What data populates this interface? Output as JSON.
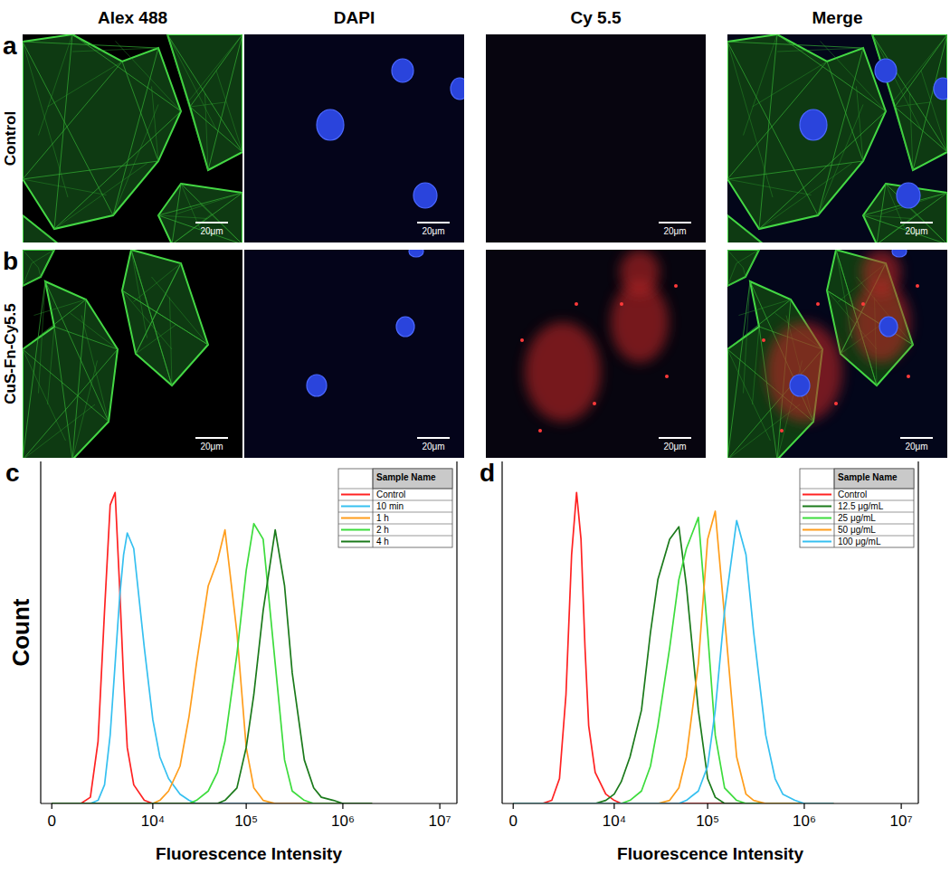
{
  "microscopy": {
    "columns": [
      "Alex 488",
      "DAPI",
      "Cy 5.5",
      "Merge"
    ],
    "rows": [
      {
        "panel": "a",
        "label": "Control"
      },
      {
        "panel": "b",
        "label": "CuS-Fn-Cy5.5"
      }
    ],
    "scale_bar": "20μm"
  },
  "chart_data": [
    {
      "type": "line",
      "title": "c",
      "x_label": "Fluorescence Intensity",
      "y_label": "Count",
      "legend_title": "Sample Name",
      "x": [
        0,
        250,
        500,
        1000,
        1500,
        2000,
        2500,
        3000,
        3500,
        4000,
        4500,
        5000,
        6000,
        8000,
        10000,
        12000,
        15000,
        20000,
        25000,
        30000,
        40000,
        50000,
        60000,
        80000,
        100000,
        120000,
        150000,
        200000,
        250000,
        300000,
        400000,
        500000,
        600000,
        800000,
        1000000,
        1500000,
        2000000
      ],
      "series": [
        {
          "name": "Control",
          "color": "#ff2222",
          "values": [
            0,
            0,
            0,
            0,
            2,
            20,
            62,
            96,
            100,
            70,
            40,
            18,
            6,
            1,
            0,
            0,
            0,
            0,
            0,
            0,
            0,
            0,
            0,
            0,
            0,
            0,
            0,
            0,
            0,
            0,
            0,
            0,
            0,
            0,
            0,
            0,
            0
          ]
        },
        {
          "name": "10 min",
          "color": "#36c0f0",
          "values": [
            0,
            0,
            0,
            0,
            0,
            1,
            6,
            22,
            45,
            66,
            80,
            87,
            82,
            50,
            27,
            15,
            8,
            3,
            1,
            0,
            0,
            0,
            0,
            0,
            0,
            0,
            0,
            0,
            0,
            0,
            0,
            0,
            0,
            0,
            0,
            0,
            0
          ]
        },
        {
          "name": "1 h",
          "color": "#ff9d1c",
          "values": [
            0,
            0,
            0,
            0,
            0,
            0,
            0,
            0,
            0,
            0,
            0,
            0,
            0,
            0,
            0,
            1,
            4,
            12,
            28,
            45,
            70,
            78,
            88,
            55,
            18,
            5,
            1,
            0,
            0,
            0,
            0,
            0,
            0,
            0,
            0,
            0,
            0
          ]
        },
        {
          "name": "2 h",
          "color": "#3ddc3d",
          "values": [
            0,
            0,
            0,
            0,
            0,
            0,
            0,
            0,
            0,
            0,
            0,
            0,
            0,
            0,
            0,
            0,
            0,
            0,
            0,
            1,
            4,
            10,
            20,
            48,
            75,
            90,
            85,
            45,
            14,
            4,
            1,
            0,
            0,
            0,
            0,
            0,
            0
          ]
        },
        {
          "name": "4 h",
          "color": "#1b7a1b",
          "values": [
            0,
            0,
            0,
            0,
            0,
            0,
            0,
            0,
            0,
            0,
            0,
            0,
            0,
            0,
            0,
            0,
            0,
            0,
            0,
            0,
            0,
            0,
            1,
            5,
            18,
            35,
            62,
            88,
            70,
            42,
            14,
            5,
            2,
            1,
            0,
            0,
            0
          ]
        }
      ],
      "xlim": [
        -300,
        15000000
      ],
      "ylim": [
        0,
        110
      ],
      "xticks": [
        {
          "value": 0,
          "label": "0"
        },
        {
          "value": 10000,
          "label": "10⁴"
        },
        {
          "value": 100000,
          "label": "10⁵"
        },
        {
          "value": 1000000,
          "label": "10⁶"
        },
        {
          "value": 10000000,
          "label": "10⁷"
        }
      ],
      "log": "x",
      "tick_labels": "x",
      "legend": "upper right"
    },
    {
      "type": "line",
      "title": "d",
      "x_label": "Fluorescence Intensity",
      "legend_title": "Sample Name",
      "x": [
        0,
        250,
        500,
        1000,
        1500,
        2000,
        2500,
        3000,
        3500,
        4000,
        4500,
        5000,
        6000,
        8000,
        10000,
        12000,
        15000,
        20000,
        25000,
        30000,
        40000,
        50000,
        60000,
        80000,
        100000,
        120000,
        150000,
        200000,
        250000,
        300000,
        400000,
        500000,
        600000,
        800000,
        1000000,
        1500000,
        2000000
      ],
      "series": [
        {
          "name": "Control",
          "color": "#ff2222",
          "values": [
            0,
            0,
            0,
            0,
            1,
            8,
            35,
            80,
            100,
            85,
            50,
            25,
            10,
            3,
            1,
            0,
            0,
            0,
            0,
            0,
            0,
            0,
            0,
            0,
            0,
            0,
            0,
            0,
            0,
            0,
            0,
            0,
            0,
            0,
            0,
            0,
            0
          ]
        },
        {
          "name": "12.5 μg/mL",
          "color": "#1b7a1b",
          "values": [
            0,
            0,
            0,
            0,
            0,
            0,
            0,
            0,
            0,
            0,
            0,
            0,
            0,
            1,
            3,
            7,
            15,
            30,
            55,
            72,
            85,
            89,
            70,
            30,
            8,
            2,
            0,
            0,
            0,
            0,
            0,
            0,
            0,
            0,
            0,
            0,
            0
          ]
        },
        {
          "name": "25 μg/mL",
          "color": "#3ddc3d",
          "values": [
            0,
            0,
            0,
            0,
            0,
            0,
            0,
            0,
            0,
            0,
            0,
            0,
            0,
            0,
            0,
            0,
            1,
            4,
            12,
            25,
            50,
            72,
            82,
            92,
            55,
            22,
            5,
            1,
            0,
            0,
            0,
            0,
            0,
            0,
            0,
            0,
            0
          ]
        },
        {
          "name": "50 μg/mL",
          "color": "#ff9d1c",
          "values": [
            0,
            0,
            0,
            0,
            0,
            0,
            0,
            0,
            0,
            0,
            0,
            0,
            0,
            0,
            0,
            0,
            0,
            0,
            0,
            0,
            1,
            5,
            15,
            45,
            85,
            94,
            60,
            15,
            3,
            1,
            0,
            0,
            0,
            0,
            0,
            0,
            0
          ]
        },
        {
          "name": "100 μg/mL",
          "color": "#36c0f0",
          "values": [
            0,
            0,
            0,
            0,
            0,
            0,
            0,
            0,
            0,
            0,
            0,
            0,
            0,
            0,
            0,
            0,
            0,
            0,
            0,
            0,
            0,
            0,
            1,
            4,
            12,
            30,
            62,
            91,
            80,
            55,
            22,
            8,
            3,
            1,
            0,
            0,
            0
          ]
        }
      ],
      "xlim": [
        -300,
        15000000
      ],
      "ylim": [
        0,
        110
      ],
      "xticks": [
        {
          "value": 0,
          "label": "0"
        },
        {
          "value": 10000,
          "label": "10⁴"
        },
        {
          "value": 100000,
          "label": "10⁵"
        },
        {
          "value": 1000000,
          "label": "10⁶"
        },
        {
          "value": 10000000,
          "label": "10⁷"
        }
      ],
      "log": "x",
      "tick_labels": "x",
      "legend": "upper right"
    }
  ]
}
